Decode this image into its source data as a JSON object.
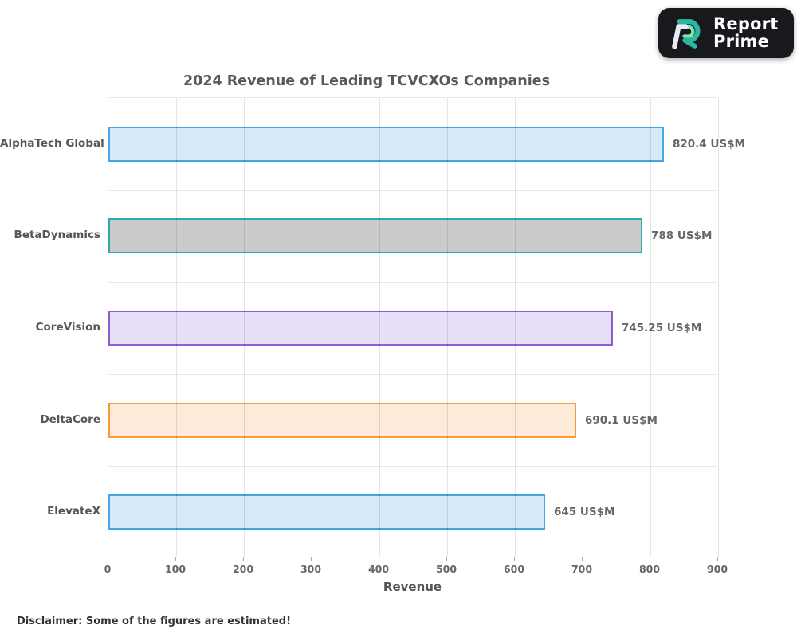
{
  "logo": {
    "line1": "Report",
    "line2": "Prime"
  },
  "chart_data": {
    "type": "bar",
    "orientation": "horizontal",
    "title": "2024 Revenue of Leading TCVCXOs Companies",
    "xlabel": "Revenue",
    "ylabel": "",
    "unit": "US$M",
    "categories": [
      "AlphaTech Global",
      "BetaDynamics",
      "CoreVision",
      "DeltaCore",
      "ElevateX"
    ],
    "values": [
      820.4,
      788,
      745.25,
      690.1,
      645
    ],
    "value_labels": [
      "820.4 US$M",
      "788 US$M",
      "745.25 US$M",
      "690.1 US$M",
      "645 US$M"
    ],
    "xlim": [
      0,
      900
    ],
    "xticks": [
      0,
      100,
      200,
      300,
      400,
      500,
      600,
      700,
      800,
      900
    ],
    "grid": true,
    "legend": false,
    "bar_styles": [
      {
        "fill": "#d5e9f8",
        "border": "#4ba3e3"
      },
      {
        "fill": "#cbcbcb",
        "border": "#2fa9a9"
      },
      {
        "fill": "#e8def8",
        "border": "#8a5fd4"
      },
      {
        "fill": "#fdead8",
        "border": "#f79b38"
      },
      {
        "fill": "#d5e9f8",
        "border": "#4ba3e3"
      }
    ]
  },
  "disclaimer": "Disclaimer: Some of the figures are estimated!"
}
